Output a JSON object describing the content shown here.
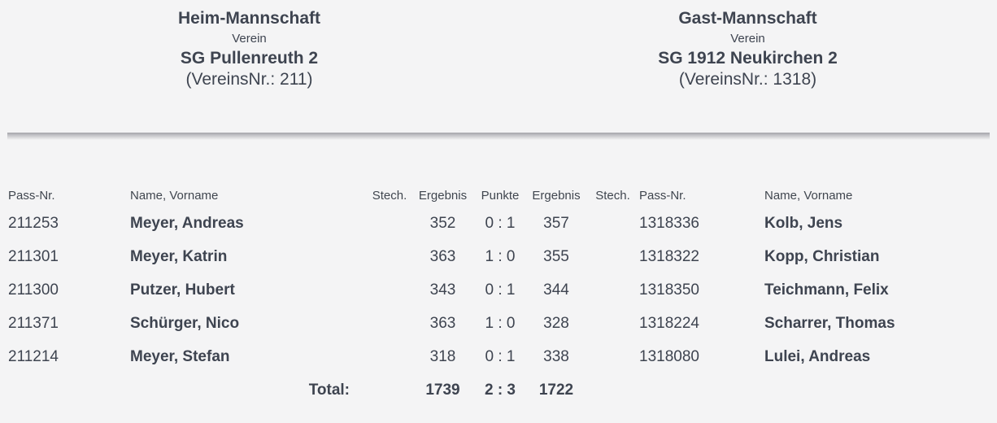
{
  "colors": {
    "background": "#f4f4f5",
    "text": "#3e4450",
    "divider_top": "#a4a4a9"
  },
  "header": {
    "home": {
      "title": "Heim-Mannschaft",
      "verein_label": "Verein",
      "club_name": "SG Pullenreuth 2",
      "club_no": "(VereinsNr.: 211)"
    },
    "guest": {
      "title": "Gast-Mannschaft",
      "verein_label": "Verein",
      "club_name": "SG 1912 Neukirchen 2",
      "club_no": "(VereinsNr.: 1318)"
    }
  },
  "table": {
    "columns": {
      "home_pass": "Pass-Nr.",
      "home_name": "Name, Vorname",
      "home_stech": "Stech.",
      "home_result": "Ergebnis",
      "points": "Punkte",
      "guest_result": "Ergebnis",
      "guest_stech": "Stech.",
      "guest_pass": "Pass-Nr.",
      "guest_name": "Name, Vorname"
    },
    "rows": [
      {
        "home_pass": "211253",
        "home_name": "Meyer, Andreas",
        "home_stech": "",
        "home_result": "352",
        "points": "0 : 1",
        "guest_result": "357",
        "guest_stech": "",
        "guest_pass": "1318336",
        "guest_name": "Kolb, Jens"
      },
      {
        "home_pass": "211301",
        "home_name": "Meyer, Katrin",
        "home_stech": "",
        "home_result": "363",
        "points": "1 : 0",
        "guest_result": "355",
        "guest_stech": "",
        "guest_pass": "1318322",
        "guest_name": "Kopp, Christian"
      },
      {
        "home_pass": "211300",
        "home_name": "Putzer, Hubert",
        "home_stech": "",
        "home_result": "343",
        "points": "0 : 1",
        "guest_result": "344",
        "guest_stech": "",
        "guest_pass": "1318350",
        "guest_name": "Teichmann, Felix"
      },
      {
        "home_pass": "211371",
        "home_name": "Schürger, Nico",
        "home_stech": "",
        "home_result": "363",
        "points": "1 : 0",
        "guest_result": "328",
        "guest_stech": "",
        "guest_pass": "1318224",
        "guest_name": "Scharrer, Thomas"
      },
      {
        "home_pass": "211214",
        "home_name": "Meyer, Stefan",
        "home_stech": "",
        "home_result": "318",
        "points": "0 : 1",
        "guest_result": "338",
        "guest_stech": "",
        "guest_pass": "1318080",
        "guest_name": "Lulei, Andreas"
      }
    ],
    "total": {
      "label": "Total:",
      "home_result": "1739",
      "points": "2 : 3",
      "guest_result": "1722"
    }
  }
}
